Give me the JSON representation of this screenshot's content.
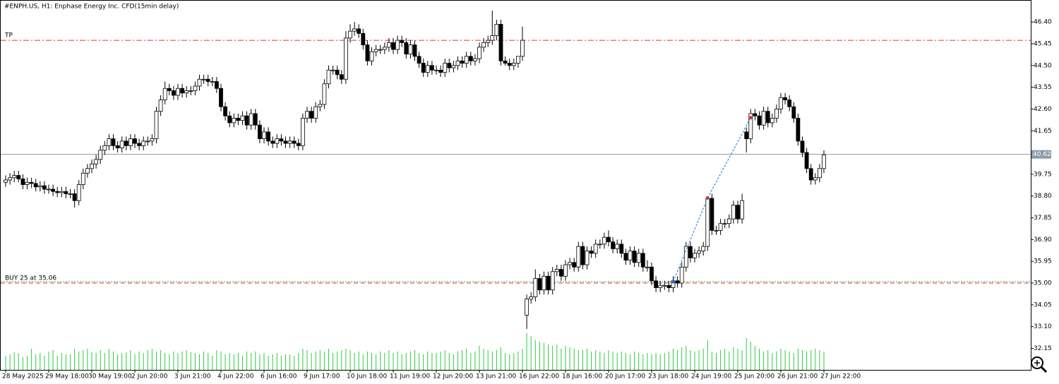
{
  "chart_data": {
    "type": "candlestick",
    "title": "#ENPH.US, H1:  Enphase Energy Inc. CFD(15min delay)",
    "ylim": [
      31.21,
      47.36
    ],
    "yticks": [
      {
        "value": 46.4,
        "label": "46.40"
      },
      45.45,
      {
        "value": 44.5,
        "label": "44.50"
      },
      43.55,
      {
        "value": 42.6,
        "label": "42.60"
      },
      41.65,
      39.75,
      {
        "value": 38.8,
        "label": "38.80"
      },
      37.85,
      {
        "value": 36.9,
        "label": "36.90"
      },
      35.95,
      {
        "value": 35.0,
        "label": "35.00"
      },
      34.05,
      {
        "value": 33.1,
        "label": "33.10"
      },
      32.15
    ],
    "xticks": [
      {
        "value": 0,
        "label": "28 May 2025"
      },
      {
        "value": 10,
        "label": "29 May 18:00"
      },
      {
        "value": 20,
        "label": "30 May 19:00"
      },
      {
        "value": 30,
        "label": "2 Jun 20:00"
      },
      {
        "value": 40,
        "label": "3 Jun 21:00"
      },
      {
        "value": 50,
        "label": "4 Jun 22:00"
      },
      {
        "value": 60,
        "label": "6 Jun 16:00"
      },
      {
        "value": 70,
        "label": "9 Jun 17:00"
      },
      {
        "value": 80,
        "label": "10 Jun 18:00"
      },
      {
        "value": 90,
        "label": "11 Jun 19:00"
      },
      {
        "value": 100,
        "label": "12 Jun 20:00"
      },
      {
        "value": 110,
        "label": "13 Jun 21:00"
      },
      {
        "value": 120,
        "label": "16 Jun 22:00"
      },
      {
        "value": 130,
        "label": "18 Jun 16:00"
      },
      {
        "value": 140,
        "label": "20 Jun 17:00"
      },
      {
        "value": 150,
        "label": "23 Jun 18:00"
      },
      {
        "value": 160,
        "label": "24 Jun 19:00"
      },
      {
        "value": 170,
        "label": "25 Jun 20:00"
      },
      {
        "value": 180,
        "label": "26 Jun 21:00"
      },
      {
        "value": 190,
        "label": "27 Jun 22:00"
      }
    ],
    "open": [
      39.4,
      39.5,
      39.6,
      39.7,
      39.55,
      39.3,
      39.4,
      39.35,
      39.2,
      39.25,
      39.1,
      39.1,
      39.0,
      38.95,
      39.0,
      38.9,
      38.9,
      38.6,
      39.3,
      39.8,
      40.0,
      40.2,
      40.4,
      40.8,
      41.0,
      41.3,
      41.0,
      40.9,
      41.2,
      41.0,
      41.3,
      41.1,
      41.0,
      41.2,
      41.2,
      41.3,
      42.5,
      43.0,
      43.5,
      43.4,
      43.2,
      43.5,
      43.3,
      43.4,
      43.4,
      43.6,
      43.9,
      43.9,
      43.8,
      43.8,
      43.5,
      42.7,
      42.3,
      42.0,
      42.2,
      42.1,
      42.3,
      41.9,
      42.4,
      41.9,
      41.3,
      41.6,
      41.2,
      41.1,
      41.3,
      41.2,
      41.1,
      41.2,
      41.1,
      41.0,
      42.2,
      42.5,
      42.2,
      42.7,
      42.8,
      43.7,
      44.3,
      44.3,
      44.1,
      43.9,
      45.7,
      46.0,
      46.1,
      45.9,
      45.4,
      44.7,
      45.1,
      45.2,
      45.2,
      45.3,
      45.5,
      45.2,
      45.6,
      45.5,
      45.0,
      45.4,
      44.9,
      44.6,
      44.2,
      44.5,
      44.3,
      44.3,
      44.2,
      44.6,
      44.4,
      44.5,
      44.7,
      44.6,
      44.9,
      44.7,
      44.8,
      45.3,
      45.5,
      45.6,
      45.8,
      46.3,
      44.7,
      44.6,
      44.5,
      44.6,
      44.9,
      33.6,
      34.3,
      34.4,
      35.2,
      34.7,
      35.3,
      34.7,
      35.5,
      35.6,
      35.3,
      35.8,
      35.9,
      35.7,
      36.6,
      35.8,
      36.4,
      36.3,
      36.7,
      36.7,
      37.0,
      36.8,
      36.5,
      36.7,
      36.3,
      36.0,
      36.4,
      35.9,
      36.3,
      35.7,
      35.7,
      35.1,
      34.8,
      34.9,
      34.9,
      34.8,
      35.1,
      35.0,
      35.7,
      36.6,
      36.1,
      36.3,
      36.4,
      36.6,
      38.7,
      37.3,
      37.3,
      37.6,
      37.6,
      37.8,
      38.4,
      37.8,
      41.6,
      41.3,
      42.4,
      42.3,
      41.9,
      42.5,
      42.0,
      42.2,
      42.6,
      43.1,
      43.0,
      42.7,
      42.2,
      41.2,
      40.7,
      40.0,
      39.5,
      39.6,
      40.0
    ],
    "high": [
      39.7,
      39.8,
      39.9,
      39.9,
      39.75,
      39.6,
      39.6,
      39.55,
      39.45,
      39.45,
      39.3,
      39.3,
      39.2,
      39.2,
      39.2,
      39.1,
      39.1,
      39.5,
      40.0,
      40.2,
      40.4,
      40.6,
      41.0,
      41.2,
      41.5,
      41.5,
      41.2,
      41.4,
      41.4,
      41.5,
      41.5,
      41.3,
      41.4,
      41.4,
      41.5,
      42.7,
      43.2,
      43.8,
      43.7,
      43.6,
      43.7,
      43.7,
      43.6,
      43.6,
      43.8,
      44.1,
      44.1,
      44.1,
      44.0,
      44.0,
      43.7,
      42.9,
      42.5,
      42.4,
      42.4,
      42.5,
      42.5,
      42.6,
      42.6,
      42.1,
      41.8,
      41.8,
      41.4,
      41.5,
      41.5,
      41.4,
      41.4,
      41.4,
      41.3,
      42.4,
      42.7,
      42.7,
      42.9,
      43.0,
      43.9,
      44.5,
      44.5,
      44.5,
      44.3,
      46.0,
      46.3,
      46.4,
      46.3,
      46.1,
      45.6,
      45.3,
      45.4,
      45.4,
      45.5,
      45.7,
      45.7,
      45.8,
      45.8,
      45.7,
      45.6,
      45.6,
      45.1,
      44.8,
      44.7,
      44.7,
      44.5,
      44.5,
      44.8,
      44.8,
      44.7,
      44.9,
      44.9,
      45.1,
      45.1,
      45.0,
      45.5,
      45.7,
      45.8,
      46.9,
      46.5,
      46.5,
      44.9,
      44.8,
      44.8,
      44.9,
      46.2,
      34.5,
      34.6,
      35.6,
      35.4,
      35.5,
      35.5,
      35.7,
      35.8,
      35.8,
      36.0,
      36.1,
      36.1,
      36.8,
      36.8,
      36.6,
      36.6,
      36.9,
      36.9,
      37.2,
      37.3,
      37.0,
      36.9,
      36.9,
      36.5,
      36.6,
      36.6,
      36.5,
      36.5,
      36.0,
      35.9,
      35.3,
      35.1,
      35.1,
      35.1,
      35.3,
      35.3,
      35.9,
      36.8,
      36.8,
      36.5,
      36.6,
      36.8,
      38.8,
      38.9,
      37.5,
      37.8,
      37.8,
      38.0,
      38.6,
      38.6,
      38.9,
      41.8,
      42.6,
      42.6,
      42.5,
      42.7,
      42.7,
      42.4,
      42.8,
      43.3,
      43.3,
      43.2,
      42.9,
      42.4,
      41.4,
      40.9,
      40.2,
      39.8,
      40.2,
      40.8
    ],
    "low": [
      39.2,
      39.3,
      39.4,
      39.4,
      39.1,
      39.1,
      39.15,
      39.0,
      39.0,
      38.9,
      38.9,
      38.8,
      38.75,
      38.75,
      38.7,
      38.7,
      38.3,
      38.4,
      39.1,
      39.6,
      39.8,
      40.0,
      40.2,
      40.6,
      40.8,
      40.8,
      40.7,
      40.7,
      40.8,
      40.8,
      40.9,
      40.8,
      40.8,
      41.0,
      41.0,
      41.1,
      42.3,
      42.8,
      43.2,
      43.0,
      43.0,
      43.1,
      43.1,
      43.2,
      43.2,
      43.4,
      43.7,
      43.6,
      43.6,
      43.3,
      42.5,
      42.1,
      41.8,
      41.8,
      41.9,
      41.9,
      41.7,
      41.7,
      41.7,
      41.1,
      41.1,
      41.0,
      40.9,
      40.9,
      41.0,
      40.9,
      40.9,
      40.9,
      40.8,
      40.8,
      42.0,
      42.0,
      42.0,
      42.5,
      42.6,
      43.5,
      44.1,
      43.9,
      43.7,
      43.7,
      45.5,
      45.8,
      45.7,
      45.2,
      44.5,
      44.5,
      44.9,
      45.0,
      45.0,
      45.1,
      45.0,
      45.0,
      45.3,
      44.8,
      44.8,
      44.7,
      44.4,
      44.0,
      44.0,
      44.1,
      44.1,
      44.0,
      44.0,
      44.2,
      44.2,
      44.3,
      44.4,
      44.4,
      44.5,
      44.5,
      44.6,
      45.1,
      45.3,
      45.4,
      45.6,
      44.5,
      44.5,
      44.3,
      44.3,
      44.4,
      44.7,
      33.0,
      34.1,
      34.2,
      34.5,
      34.5,
      34.5,
      34.5,
      35.3,
      35.1,
      35.1,
      35.6,
      35.5,
      35.5,
      35.6,
      35.6,
      36.1,
      36.1,
      36.5,
      36.5,
      36.6,
      36.3,
      36.3,
      36.1,
      35.8,
      35.8,
      35.7,
      35.7,
      35.5,
      35.5,
      34.9,
      34.6,
      34.6,
      34.7,
      34.6,
      34.6,
      34.8,
      34.8,
      35.5,
      35.9,
      35.9,
      36.1,
      36.2,
      36.4,
      37.1,
      37.1,
      37.1,
      37.4,
      37.4,
      37.6,
      37.6,
      37.6,
      40.7,
      41.1,
      42.1,
      41.7,
      41.7,
      41.8,
      41.8,
      42.0,
      42.4,
      42.8,
      42.5,
      42.0,
      41.0,
      40.5,
      39.8,
      39.3,
      39.3,
      39.4,
      39.8
    ],
    "close": [
      39.5,
      39.6,
      39.7,
      39.55,
      39.3,
      39.4,
      39.35,
      39.2,
      39.25,
      39.1,
      39.1,
      39.0,
      38.95,
      39.0,
      38.9,
      38.9,
      38.6,
      39.3,
      39.8,
      40.0,
      40.2,
      40.4,
      40.8,
      41.0,
      41.3,
      41.0,
      40.9,
      41.2,
      41.0,
      41.3,
      41.1,
      41.0,
      41.2,
      41.2,
      41.3,
      42.5,
      43.0,
      43.5,
      43.4,
      43.2,
      43.5,
      43.3,
      43.4,
      43.4,
      43.6,
      43.9,
      43.9,
      43.8,
      43.8,
      43.5,
      42.7,
      42.3,
      42.0,
      42.2,
      42.1,
      42.3,
      41.9,
      42.4,
      41.9,
      41.3,
      41.6,
      41.2,
      41.1,
      41.3,
      41.2,
      41.1,
      41.2,
      41.1,
      41.0,
      42.2,
      42.5,
      42.2,
      42.7,
      42.8,
      43.7,
      44.3,
      44.3,
      44.1,
      43.9,
      45.7,
      46.0,
      46.1,
      45.9,
      45.4,
      44.7,
      45.1,
      45.2,
      45.2,
      45.3,
      45.5,
      45.2,
      45.6,
      45.5,
      45.0,
      45.4,
      44.9,
      44.6,
      44.2,
      44.5,
      44.3,
      44.3,
      44.2,
      44.6,
      44.4,
      44.5,
      44.7,
      44.6,
      44.9,
      44.7,
      44.8,
      45.3,
      45.5,
      45.6,
      45.8,
      46.3,
      44.7,
      44.6,
      44.5,
      44.6,
      44.9,
      45.6,
      34.3,
      34.4,
      35.2,
      34.7,
      35.3,
      34.7,
      35.5,
      35.6,
      35.3,
      35.8,
      35.9,
      35.7,
      36.6,
      35.8,
      36.4,
      36.3,
      36.7,
      36.7,
      37.0,
      36.8,
      36.5,
      36.7,
      36.3,
      36.0,
      36.4,
      35.9,
      36.3,
      35.7,
      35.7,
      35.1,
      34.8,
      34.9,
      34.9,
      34.8,
      35.1,
      35.0,
      35.7,
      36.6,
      36.1,
      36.3,
      36.4,
      36.6,
      38.7,
      37.3,
      37.3,
      37.6,
      37.6,
      37.8,
      38.4,
      37.8,
      38.6,
      41.3,
      42.4,
      42.3,
      41.9,
      42.5,
      42.0,
      42.2,
      42.6,
      43.1,
      43.0,
      42.7,
      42.2,
      41.2,
      40.7,
      40.0,
      39.5,
      39.6,
      40.0,
      40.6
    ],
    "volume": [
      20,
      22,
      25,
      24,
      18,
      20,
      30,
      22,
      24,
      20,
      26,
      28,
      20,
      24,
      22,
      22,
      30,
      26,
      28,
      30,
      25,
      24,
      28,
      24,
      30,
      26,
      22,
      24,
      25,
      28,
      22,
      26,
      24,
      28,
      30,
      26,
      28,
      24,
      22,
      26,
      24,
      26,
      28,
      25,
      24,
      22,
      26,
      24,
      20,
      28,
      26,
      22,
      24,
      22,
      24,
      20,
      26,
      24,
      26,
      22,
      24,
      20,
      22,
      24,
      20,
      22,
      22,
      20,
      24,
      30,
      28,
      24,
      26,
      28,
      26,
      30,
      24,
      26,
      28,
      30,
      28,
      24,
      26,
      22,
      26,
      24,
      22,
      26,
      24,
      28,
      24,
      26,
      22,
      24,
      26,
      28,
      24,
      22,
      26,
      24,
      24,
      26,
      28,
      24,
      22,
      26,
      28,
      30,
      24,
      26,
      34,
      30,
      28,
      26,
      28,
      32,
      24,
      22,
      24,
      26,
      30,
      52,
      48,
      42,
      40,
      38,
      36,
      34,
      36,
      30,
      34,
      32,
      30,
      28,
      28,
      30,
      26,
      28,
      26,
      24,
      28,
      26,
      24,
      26,
      24,
      22,
      26,
      24,
      22,
      24,
      22,
      24,
      22,
      24,
      26,
      30,
      28,
      32,
      34,
      28,
      26,
      28,
      30,
      42,
      26,
      24,
      28,
      30,
      26,
      32,
      30,
      28,
      45,
      40,
      34,
      30,
      26,
      28,
      24,
      26,
      30,
      28,
      26,
      24,
      30,
      28,
      26,
      28,
      30,
      28,
      26
    ],
    "volume_color": "#2ecc40",
    "up_color": "#ffffff",
    "down_color": "#000000",
    "levels": [
      {
        "label": "TP",
        "price": 45.6,
        "color": "#e8333a",
        "style": "dashdot"
      },
      {
        "label": "BUY 25 at 35.06",
        "price": 35.0,
        "color": "#e8333a",
        "style": "dashed"
      },
      {
        "price": 35.06,
        "color": "#2ea84a",
        "style": "dotted"
      }
    ],
    "last_price": 40.62,
    "last_color": "#8a9aa8",
    "trades": [
      {
        "bar": 155,
        "price": 35.06
      },
      {
        "bar": 163,
        "price": 38.72
      },
      {
        "bar": 173,
        "price": 42.22
      }
    ],
    "trade_color": "#1e6fd9"
  }
}
